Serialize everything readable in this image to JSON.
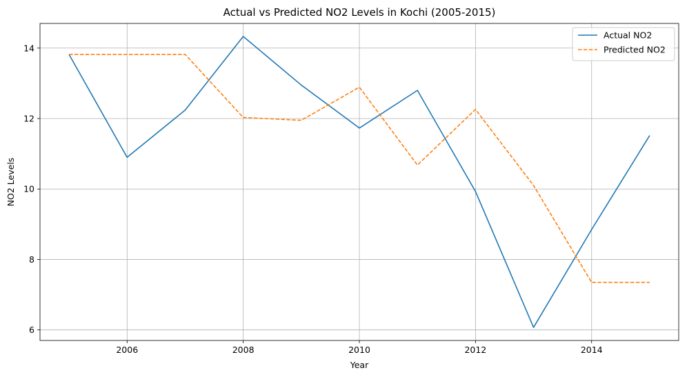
{
  "chart_data": {
    "type": "line",
    "title": "Actual vs Predicted NO2 Levels in Kochi (2005-2015)",
    "xlabel": "Year",
    "ylabel": "NO2 Levels",
    "xlim": [
      2004.5,
      2015.5
    ],
    "ylim": [
      5.7,
      14.7
    ],
    "grid": true,
    "legend_position": "top-right",
    "x": [
      2005,
      2006,
      2007,
      2008,
      2009,
      2010,
      2011,
      2012,
      2013,
      2014,
      2015
    ],
    "xticks": [
      2006,
      2008,
      2010,
      2012,
      2014
    ],
    "xtick_labels": [
      "2006",
      "2008",
      "2010",
      "2012",
      "2014"
    ],
    "yticks": [
      6,
      8,
      10,
      12,
      14
    ],
    "ytick_labels": [
      "6",
      "8",
      "10",
      "12",
      "14"
    ],
    "series": [
      {
        "name": "Actual NO2",
        "color": "#1f77b4",
        "style": "solid",
        "values": [
          13.82,
          10.9,
          12.24,
          14.33,
          12.95,
          11.73,
          12.8,
          9.93,
          6.07,
          8.85,
          11.52
        ]
      },
      {
        "name": "Predicted NO2",
        "color": "#ff7f0e",
        "style": "dashed",
        "values": [
          13.82,
          13.82,
          13.82,
          12.03,
          11.95,
          12.89,
          10.68,
          12.26,
          10.1,
          7.35,
          7.35
        ]
      }
    ]
  }
}
